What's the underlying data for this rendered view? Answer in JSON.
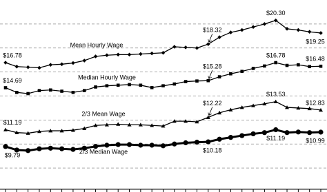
{
  "chart_data": {
    "type": "line",
    "categories": [
      null,
      null,
      null,
      null,
      null,
      null,
      null,
      null,
      null,
      null,
      null,
      null,
      null,
      null,
      null,
      null,
      null,
      null,
      null,
      null,
      null,
      null,
      null,
      null,
      null,
      null,
      null,
      null,
      null
    ],
    "ylim": [
      6,
      22
    ],
    "yticks": [
      8,
      10,
      12,
      14,
      16,
      18,
      20
    ],
    "grid": true,
    "series": [
      {
        "name": "Mean Hourly Wage",
        "color": "#000000",
        "marker": "diamond",
        "values": [
          16.78,
          16.45,
          16.4,
          16.35,
          16.6,
          16.65,
          16.75,
          16.95,
          17.3,
          17.4,
          17.45,
          17.45,
          17.5,
          17.55,
          17.6,
          18.1,
          18.05,
          18.0,
          18.32,
          18.9,
          19.3,
          19.5,
          19.75,
          20.0,
          20.3,
          19.6,
          19.5,
          19.35,
          19.25
        ],
        "value_labels": [
          "$16.78",
          null,
          null,
          null,
          null,
          null,
          null,
          null,
          null,
          null,
          null,
          null,
          null,
          null,
          null,
          null,
          null,
          null,
          "$18.32",
          null,
          null,
          null,
          null,
          null,
          "$20.30",
          null,
          null,
          null,
          "$19.25"
        ]
      },
      {
        "name": "Median Hourly Wage",
        "color": "#000000",
        "marker": "square",
        "values": [
          14.69,
          14.3,
          14.2,
          14.45,
          14.5,
          14.4,
          14.3,
          14.45,
          14.75,
          14.85,
          14.9,
          14.95,
          14.9,
          14.7,
          14.85,
          15.0,
          15.2,
          15.25,
          15.28,
          15.6,
          15.85,
          16.05,
          16.3,
          16.5,
          16.78,
          16.55,
          16.6,
          16.45,
          16.48
        ],
        "value_labels": [
          "$14.69",
          null,
          null,
          null,
          null,
          null,
          null,
          null,
          null,
          null,
          null,
          null,
          null,
          null,
          null,
          null,
          null,
          null,
          "$15.28",
          null,
          null,
          null,
          null,
          null,
          "$16.78",
          null,
          null,
          null,
          "$16.48"
        ]
      },
      {
        "name": "2/3 Mean Wage",
        "color": "#000000",
        "marker": "triangle",
        "values": [
          11.19,
          10.95,
          10.9,
          11.05,
          11.1,
          11.1,
          11.15,
          11.3,
          11.55,
          11.6,
          11.65,
          11.6,
          11.6,
          11.55,
          11.5,
          11.9,
          11.9,
          11.85,
          12.22,
          12.6,
          12.85,
          13.05,
          13.2,
          13.35,
          13.53,
          13.05,
          13.0,
          12.95,
          12.83
        ],
        "value_labels": [
          "$11.19",
          null,
          null,
          null,
          null,
          null,
          null,
          null,
          null,
          null,
          null,
          null,
          null,
          null,
          null,
          null,
          null,
          null,
          "$12.22",
          null,
          null,
          null,
          null,
          null,
          "$13.53",
          null,
          null,
          null,
          "$12.83"
        ]
      },
      {
        "name": "2/3 Median Wage",
        "color": "#000000",
        "marker": "circle",
        "values": [
          9.79,
          9.5,
          9.45,
          9.6,
          9.65,
          9.6,
          9.55,
          9.65,
          9.8,
          9.9,
          9.95,
          9.95,
          9.9,
          9.9,
          9.85,
          10.0,
          10.1,
          10.15,
          10.18,
          10.4,
          10.55,
          10.7,
          10.85,
          10.95,
          11.19,
          10.95,
          11.0,
          10.95,
          10.99
        ],
        "value_labels": [
          "$9.79",
          null,
          null,
          null,
          null,
          null,
          null,
          null,
          null,
          null,
          null,
          null,
          null,
          null,
          null,
          null,
          null,
          null,
          "$10.18",
          null,
          null,
          null,
          null,
          null,
          "$11.19",
          null,
          null,
          null,
          "$10.99"
        ]
      }
    ]
  }
}
